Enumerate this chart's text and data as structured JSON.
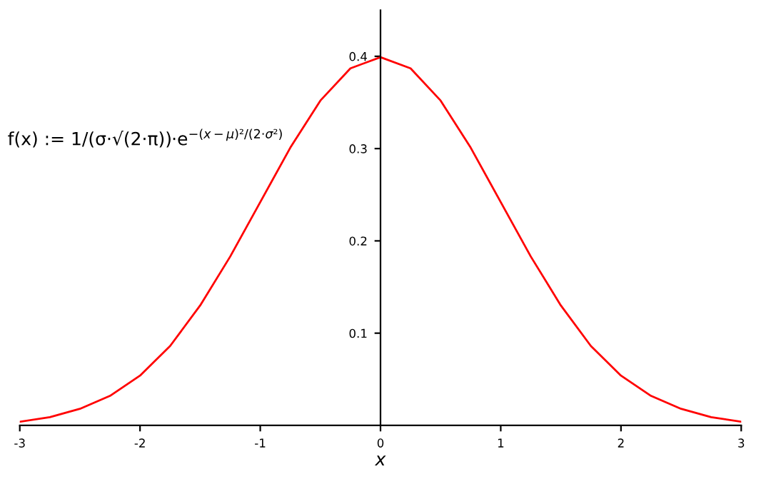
{
  "chart_data": {
    "type": "line",
    "xlabel": "x",
    "annotations": [
      "f(x) := 1/(σ·√(2·π))·e$^{−(x−μ)²/(2·σ²)}$"
    ],
    "x": [
      -3,
      -2.75,
      -2.5,
      -2.25,
      -2,
      -1.75,
      -1.5,
      -1.25,
      -1,
      -0.75,
      -0.5,
      -0.25,
      0,
      0.25,
      0.5,
      0.75,
      1,
      1.25,
      1.5,
      1.75,
      2,
      2.25,
      2.5,
      2.75,
      3
    ],
    "series": [
      {
        "color": "#ff0000",
        "values": [
          0.004,
          0.009,
          0.018,
          0.032,
          0.054,
          0.086,
          0.13,
          0.183,
          0.242,
          0.301,
          0.352,
          0.387,
          0.399,
          0.387,
          0.352,
          0.301,
          0.242,
          0.183,
          0.13,
          0.086,
          0.054,
          0.032,
          0.018,
          0.009,
          0.004
        ]
      }
    ],
    "xlim": [
      -3,
      3
    ],
    "ylim": [
      0,
      0.45
    ],
    "xticks": [
      -3,
      -2,
      -1,
      0,
      1,
      2,
      3
    ],
    "yticks": [
      0.1,
      0.2,
      0.3,
      0.4
    ],
    "grid": false,
    "legend": false,
    "marker": "none",
    "line_style": "solid"
  }
}
